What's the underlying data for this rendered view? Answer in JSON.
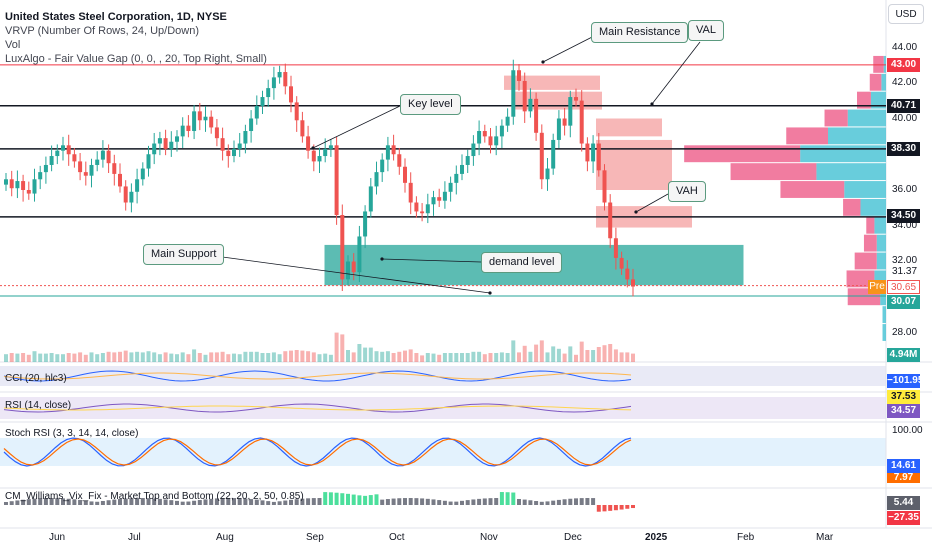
{
  "header": {
    "title": "United States Steel Corporation, 1D, NYSE",
    "study1": "VRVP (Number Of Rows, 24, Up/Down)",
    "study2": "Vol",
    "study3": "LuxAlgo - Fair Value Gap (0, 0, , 20, Top Right, Small)"
  },
  "currency_button": "USD",
  "callouts": {
    "main_resistance": "Main Resistance",
    "val": "VAL",
    "key_level": "Key level",
    "vah": "VAH",
    "main_support": "Main Support",
    "demand_level": "demand level"
  },
  "price_axis": {
    "ticks": [
      "44.00",
      "42.00",
      "40.00",
      "38.00",
      "36.00",
      "34.00",
      "32.00",
      "31.37",
      "30.00",
      "28.00"
    ],
    "tags": {
      "resistance": "43.00",
      "key": "40.71",
      "level": "38.30",
      "vah": "34.50",
      "pre_label": "Pre",
      "pre_price": "30.65",
      "support": "30.07",
      "volume": "4.94M"
    }
  },
  "time_axis": [
    "Jun",
    "Jul",
    "Aug",
    "Sep",
    "Oct",
    "Nov",
    "Dec",
    "2025",
    "Feb",
    "Mar"
  ],
  "indicators": {
    "cci": {
      "label": "CCI (20, hlc3)",
      "value": "−101.95"
    },
    "rsi": {
      "label": "RSI (14, close)",
      "value1": "37.53",
      "value2": "34.57"
    },
    "stoch": {
      "label": "Stoch RSI (3, 3, 14, 14, close)",
      "top_tick": "100.00",
      "value1": "14.61",
      "value2": "7.97"
    },
    "cm": {
      "label": "CM_Williams_Vix_Fix - Market Top and Bottom (22, 20, 2, 50, 0.85)",
      "value1": "5.44",
      "value2": "−27.35"
    }
  },
  "colors": {
    "up": "#26a69a",
    "down": "#ef5350",
    "demand_zone": "#26a69a",
    "fvg": "#f28b8b",
    "vrvp_up": "#4dc4d6",
    "vrvp_down": "#ee5b88",
    "resistance": "#f23645"
  },
  "chart_data": {
    "type": "candlestick",
    "symbol": "United States Steel Corporation, 1D, NYSE",
    "ylim": [
      27,
      45
    ],
    "levels": [
      {
        "name": "Main Resistance",
        "price": 43.0
      },
      {
        "name": "Key level",
        "price": 40.71
      },
      {
        "name": "38.30",
        "price": 38.3
      },
      {
        "name": "VAH",
        "price": 34.5
      },
      {
        "name": "Main Support",
        "price": 30.07
      }
    ],
    "demand_zone": {
      "label": "demand level",
      "low": 30.7,
      "high": 32.9
    },
    "last_price": 30.65,
    "closes": [
      36.6,
      36.1,
      36.5,
      36.0,
      35.8,
      36.6,
      37.0,
      37.4,
      37.9,
      38.2,
      38.5,
      38.0,
      37.6,
      37.0,
      36.8,
      37.4,
      37.7,
      38.2,
      37.5,
      36.9,
      36.2,
      35.3,
      35.9,
      36.6,
      37.2,
      38.0,
      38.6,
      38.9,
      38.3,
      38.7,
      39.0,
      39.6,
      39.3,
      40.4,
      39.9,
      40.1,
      39.5,
      38.9,
      38.2,
      37.9,
      38.3,
      38.6,
      39.3,
      40.0,
      40.7,
      41.2,
      41.7,
      42.3,
      42.6,
      41.8,
      40.9,
      39.9,
      39.0,
      38.2,
      37.6,
      37.9,
      38.3,
      38.5,
      34.6,
      31.0,
      32.0,
      31.4,
      33.4,
      34.8,
      36.2,
      37.0,
      37.7,
      38.5,
      38.0,
      37.3,
      36.4,
      35.3,
      34.8,
      34.7,
      35.2,
      35.6,
      35.4,
      35.9,
      36.4,
      36.9,
      37.4,
      37.9,
      38.6,
      39.3,
      39.0,
      38.5,
      39.0,
      39.6,
      40.1,
      42.7,
      42.1,
      40.4,
      41.1,
      39.2,
      36.6,
      37.2,
      38.8,
      40.0,
      39.6,
      41.2,
      41.0,
      38.6,
      37.6,
      38.6,
      37.1,
      35.3,
      33.3,
      32.2,
      31.6,
      31.0,
      30.6
    ],
    "vrvp_rows": [
      {
        "price_from": 27.5,
        "price_to": 28.5,
        "up": 6,
        "down": 0
      },
      {
        "price_from": 28.5,
        "price_to": 29.5,
        "up": 6,
        "down": 0
      },
      {
        "price_from": 29.5,
        "price_to": 30.5,
        "up": 10,
        "down": 56
      },
      {
        "price_from": 30.5,
        "price_to": 31.5,
        "up": 20,
        "down": 48
      },
      {
        "price_from": 31.5,
        "price_to": 32.5,
        "up": 16,
        "down": 38
      },
      {
        "price_from": 32.5,
        "price_to": 33.5,
        "up": 16,
        "down": 22
      },
      {
        "price_from": 33.5,
        "price_to": 34.5,
        "up": 20,
        "down": 14
      },
      {
        "price_from": 34.5,
        "price_to": 35.5,
        "up": 44,
        "down": 30
      },
      {
        "price_from": 35.5,
        "price_to": 36.5,
        "up": 72,
        "down": 110
      },
      {
        "price_from": 36.5,
        "price_to": 37.5,
        "up": 120,
        "down": 148
      },
      {
        "price_from": 37.5,
        "price_to": 38.5,
        "up": 148,
        "down": 200
      },
      {
        "price_from": 38.5,
        "price_to": 39.5,
        "up": 100,
        "down": 72
      },
      {
        "price_from": 39.5,
        "price_to": 40.5,
        "up": 66,
        "down": 40
      },
      {
        "price_from": 40.5,
        "price_to": 41.5,
        "up": 26,
        "down": 24
      },
      {
        "price_from": 41.5,
        "price_to": 42.5,
        "up": 8,
        "down": 20
      },
      {
        "price_from": 42.5,
        "price_to": 43.5,
        "up": 4,
        "down": 18
      }
    ]
  }
}
